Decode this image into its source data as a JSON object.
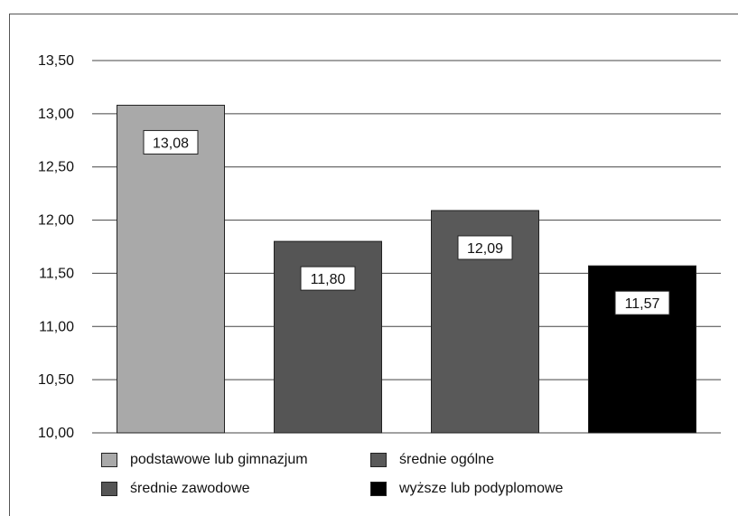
{
  "chart_data": {
    "type": "bar",
    "title": "",
    "xlabel": "",
    "ylabel": "",
    "ylim": [
      10.0,
      13.5
    ],
    "yticks": [
      "10,00",
      "10,50",
      "11,00",
      "11,50",
      "12,00",
      "12,50",
      "13,00",
      "13,50"
    ],
    "ytick_values": [
      10.0,
      10.5,
      11.0,
      11.5,
      12.0,
      12.5,
      13.0,
      13.5
    ],
    "categories": [
      "podstawowe lub gimnazjum",
      "średnie zawodowe",
      "średnie ogólne",
      "wyższe lub podyplomowe"
    ],
    "values": [
      13.08,
      11.8,
      12.09,
      11.57
    ],
    "value_labels": [
      "13,08",
      "11,80",
      "12,09",
      "11,57"
    ],
    "colors": [
      "#a9a9a9",
      "#555555",
      "#595959",
      "#000000"
    ],
    "grid": true,
    "legend_placement": "bottom",
    "legend": [
      {
        "label": "podstawowe lub gimnazjum",
        "color": "#a9a9a9"
      },
      {
        "label": "średnie ogólne",
        "color": "#595959"
      },
      {
        "label": "średnie zawodowe",
        "color": "#555555"
      },
      {
        "label": "wyższe lub podyplomowe",
        "color": "#000000"
      }
    ]
  }
}
